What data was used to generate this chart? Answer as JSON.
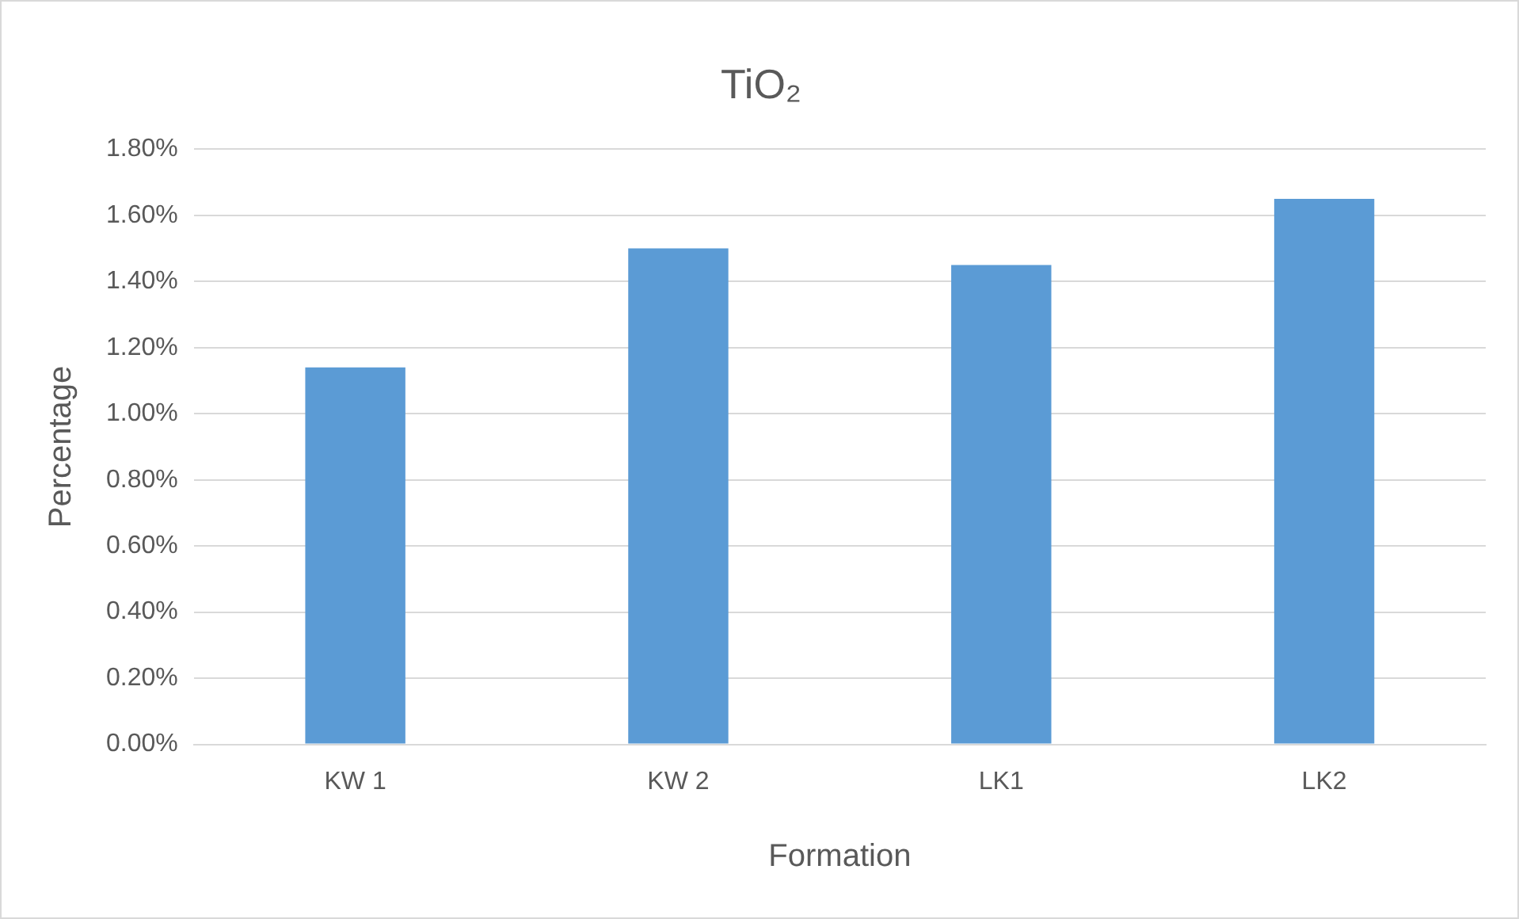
{
  "chart_data": {
    "type": "bar",
    "title": "TiO₂",
    "xlabel": "Formation",
    "ylabel": "Percentage",
    "categories": [
      "KW 1",
      "KW 2",
      "LK1",
      "LK2"
    ],
    "values": [
      1.14,
      1.5,
      1.45,
      1.65
    ],
    "color": "#5b9bd5",
    "ylim": [
      0,
      1.8
    ],
    "yticks": [
      {
        "value": 0,
        "label": "0.00%"
      },
      {
        "value": 0.2,
        "label": "0.20%"
      },
      {
        "value": 0.4,
        "label": "0.40%"
      },
      {
        "value": 0.6,
        "label": "0.60%"
      },
      {
        "value": 0.8,
        "label": "0.80%"
      },
      {
        "value": 1,
        "label": "1.00%"
      },
      {
        "value": 1.2,
        "label": "1.20%"
      },
      {
        "value": 1.4,
        "label": "1.40%"
      },
      {
        "value": 1.6,
        "label": "1.60%"
      },
      {
        "value": 1.8,
        "label": "1.80%"
      }
    ],
    "grid": "y",
    "legend": false
  }
}
